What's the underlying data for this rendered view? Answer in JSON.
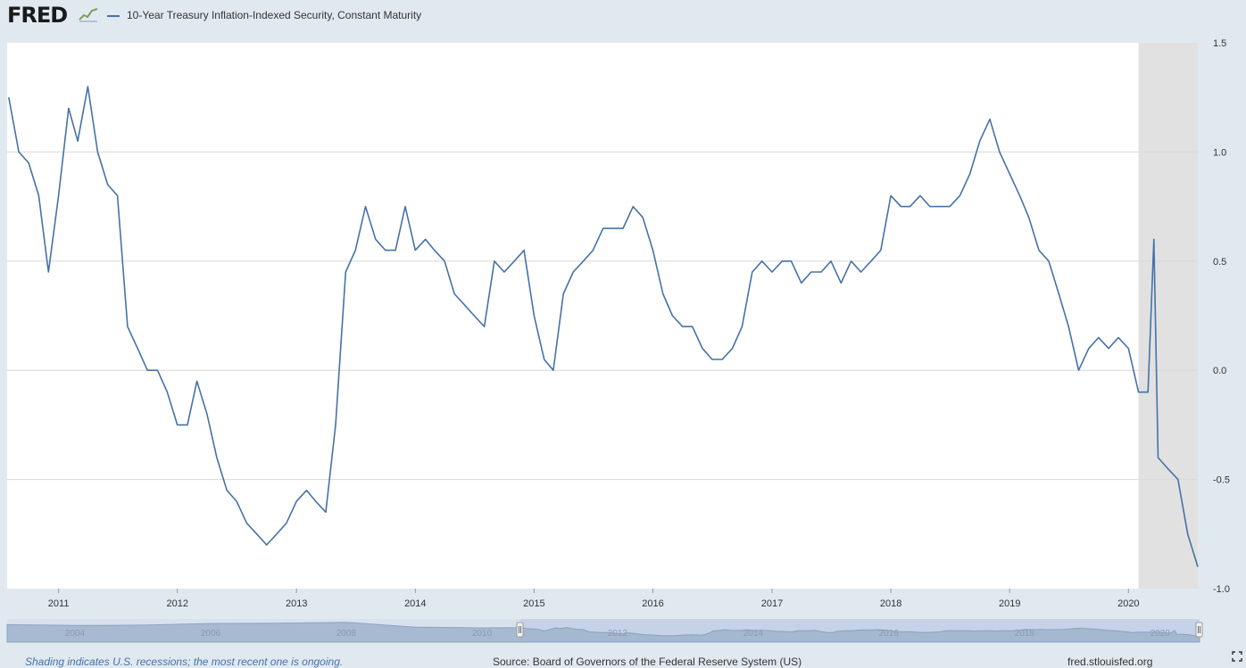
{
  "header": {
    "logo_text": "FRED",
    "logo_icon": "line-graph-icon",
    "legend_label": "10-Year Treasury Inflation-Indexed Security, Constant Maturity"
  },
  "footer": {
    "note": "Shading indicates U.S. recessions; the most recent one is ongoing.",
    "source": "Source: Board of Governors of the Federal Reserve System (US)",
    "site": "fred.stlouisfed.org"
  },
  "colors": {
    "line": "#4572a7",
    "background": "#e1e9f0",
    "plot_background": "#ffffff",
    "recession": "#e1e1e1",
    "grid": "#d8d8d8",
    "navigator_fill": "#9fb4cc",
    "navigator_selected": "#c5d2e8"
  },
  "chart_data": {
    "type": "line",
    "series": [
      {
        "name": "10-Year Treasury Inflation-Indexed Security, Constant Maturity",
        "x": [
          "2010-08-01",
          "2010-09-01",
          "2010-10-01",
          "2010-11-01",
          "2010-12-01",
          "2011-01-01",
          "2011-02-01",
          "2011-03-01",
          "2011-04-01",
          "2011-05-01",
          "2011-06-01",
          "2011-07-01",
          "2011-08-01",
          "2011-09-01",
          "2011-10-01",
          "2011-11-01",
          "2011-12-01",
          "2012-01-01",
          "2012-02-01",
          "2012-03-01",
          "2012-04-01",
          "2012-05-01",
          "2012-06-01",
          "2012-07-01",
          "2012-08-01",
          "2012-09-01",
          "2012-10-01",
          "2012-11-01",
          "2012-12-01",
          "2013-01-01",
          "2013-02-01",
          "2013-03-01",
          "2013-04-01",
          "2013-05-01",
          "2013-06-01",
          "2013-07-01",
          "2013-08-01",
          "2013-09-01",
          "2013-10-01",
          "2013-11-01",
          "2013-12-01",
          "2014-01-01",
          "2014-02-01",
          "2014-03-01",
          "2014-04-01",
          "2014-05-01",
          "2014-06-01",
          "2014-07-01",
          "2014-08-01",
          "2014-09-01",
          "2014-10-01",
          "2014-11-01",
          "2014-12-01",
          "2015-01-01",
          "2015-02-01",
          "2015-03-01",
          "2015-04-01",
          "2015-05-01",
          "2015-06-01",
          "2015-07-01",
          "2015-08-01",
          "2015-09-01",
          "2015-10-01",
          "2015-11-01",
          "2015-12-01",
          "2016-01-01",
          "2016-02-01",
          "2016-03-01",
          "2016-04-01",
          "2016-05-01",
          "2016-06-01",
          "2016-07-01",
          "2016-08-01",
          "2016-09-01",
          "2016-10-01",
          "2016-11-01",
          "2016-12-01",
          "2017-01-01",
          "2017-02-01",
          "2017-03-01",
          "2017-04-01",
          "2017-05-01",
          "2017-06-01",
          "2017-07-01",
          "2017-08-01",
          "2017-09-01",
          "2017-10-01",
          "2017-11-01",
          "2017-12-01",
          "2018-01-01",
          "2018-02-01",
          "2018-03-01",
          "2018-04-01",
          "2018-05-01",
          "2018-06-01",
          "2018-07-01",
          "2018-08-01",
          "2018-09-01",
          "2018-10-01",
          "2018-11-01",
          "2018-12-01",
          "2019-01-01",
          "2019-02-01",
          "2019-03-01",
          "2019-04-01",
          "2019-05-01",
          "2019-06-01",
          "2019-07-01",
          "2019-08-01",
          "2019-09-01",
          "2019-10-01",
          "2019-11-01",
          "2019-12-01",
          "2020-01-01",
          "2020-02-01",
          "2020-03-01",
          "2020-03-19",
          "2020-04-01",
          "2020-05-01",
          "2020-06-01",
          "2020-07-01",
          "2020-08-01"
        ],
        "values": [
          1.25,
          1.0,
          0.95,
          0.8,
          0.45,
          0.8,
          1.2,
          1.05,
          1.3,
          1.0,
          0.85,
          0.8,
          0.2,
          0.1,
          0.0,
          0.0,
          -0.1,
          -0.25,
          -0.25,
          -0.05,
          -0.2,
          -0.4,
          -0.55,
          -0.6,
          -0.7,
          -0.75,
          -0.8,
          -0.75,
          -0.7,
          -0.6,
          -0.55,
          -0.6,
          -0.65,
          -0.25,
          0.45,
          0.55,
          0.75,
          0.6,
          0.55,
          0.55,
          0.75,
          0.55,
          0.6,
          0.55,
          0.5,
          0.35,
          0.3,
          0.25,
          0.2,
          0.5,
          0.45,
          0.5,
          0.55,
          0.25,
          0.05,
          0.0,
          0.35,
          0.45,
          0.5,
          0.55,
          0.65,
          0.65,
          0.65,
          0.75,
          0.7,
          0.55,
          0.35,
          0.25,
          0.2,
          0.2,
          0.1,
          0.05,
          0.05,
          0.1,
          0.2,
          0.45,
          0.5,
          0.45,
          0.5,
          0.5,
          0.4,
          0.45,
          0.45,
          0.5,
          0.4,
          0.5,
          0.45,
          0.5,
          0.55,
          0.8,
          0.75,
          0.75,
          0.8,
          0.75,
          0.75,
          0.75,
          0.8,
          0.9,
          1.05,
          1.15,
          1.0,
          0.9,
          0.8,
          0.7,
          0.55,
          0.5,
          0.35,
          0.2,
          0.0,
          0.1,
          0.15,
          0.1,
          0.15,
          0.1,
          -0.1,
          -0.1,
          0.6,
          -0.4,
          -0.45,
          -0.5,
          -0.75,
          -0.9
        ],
        "color": "#4572a7"
      }
    ],
    "x_ticks": [
      "2011",
      "2012",
      "2013",
      "2014",
      "2015",
      "2016",
      "2017",
      "2018",
      "2019",
      "2020"
    ],
    "y_ticks": [
      "1.5",
      "1.0",
      "0.5",
      "0.0",
      "-0.5",
      "-1.0"
    ],
    "xlim": [
      "2010-07-27",
      "2020-08-01"
    ],
    "ylim": [
      -1.0,
      1.5
    ],
    "y_axis_position": "right",
    "grid": "horizontal",
    "recession_shading": {
      "start": "2020-02-01",
      "end": "2020-08-01"
    },
    "navigator": {
      "labels": [
        "2004",
        "2006",
        "2008",
        "2010",
        "2012",
        "2014",
        "2016",
        "2018",
        "2020"
      ],
      "range": [
        "2003-01-01",
        "2020-08-01"
      ],
      "selected_range": [
        "2010-07-27",
        "2020-08-01"
      ]
    }
  }
}
